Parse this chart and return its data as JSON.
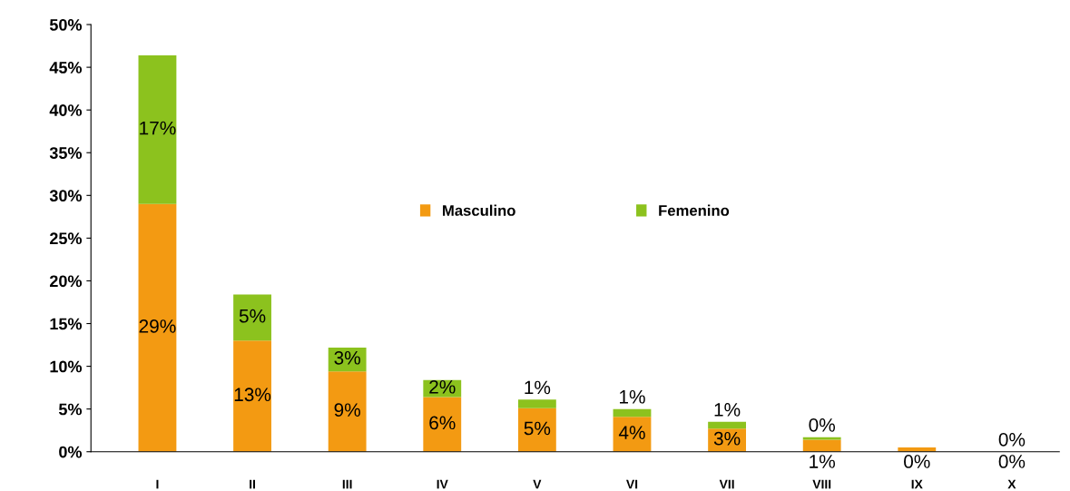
{
  "chart_data": {
    "type": "bar",
    "stacked": true,
    "categories": [
      "I",
      "II",
      "III",
      "IV",
      "V",
      "VI",
      "VII",
      "VIII",
      "IX",
      "X"
    ],
    "series": [
      {
        "name": "Masculino",
        "color": "#f39a12",
        "values": [
          29,
          13,
          9.4,
          6.4,
          5.1,
          4.1,
          2.7,
          1.4,
          0.5,
          0
        ],
        "value_labels": [
          "29%",
          "13%",
          "9%",
          "6%",
          "5%",
          "4%",
          "3%",
          "1%",
          "0%",
          "0%"
        ]
      },
      {
        "name": "Femenino",
        "color": "#8cc21e",
        "values": [
          17.4,
          5.4,
          2.8,
          2.0,
          1.0,
          0.9,
          0.8,
          0.3,
          0,
          0
        ],
        "value_labels": [
          "17%",
          "5%",
          "3%",
          "2%",
          "1%",
          "1%",
          "1%",
          "0%",
          null,
          "0%"
        ]
      }
    ],
    "ylim": [
      0,
      50
    ],
    "yticks": [
      {
        "value": 0,
        "label": "0%"
      },
      {
        "value": 5,
        "label": "5%"
      },
      {
        "value": 10,
        "label": "10%"
      },
      {
        "value": 15,
        "label": "15%"
      },
      {
        "value": 20,
        "label": "20%"
      },
      {
        "value": 25,
        "label": "25%"
      },
      {
        "value": 30,
        "label": "30%"
      },
      {
        "value": 35,
        "label": "35%"
      },
      {
        "value": 40,
        "label": "40%"
      },
      {
        "value": 45,
        "label": "45%"
      },
      {
        "value": 50,
        "label": "50%"
      }
    ],
    "grid": false,
    "legend": "top"
  }
}
